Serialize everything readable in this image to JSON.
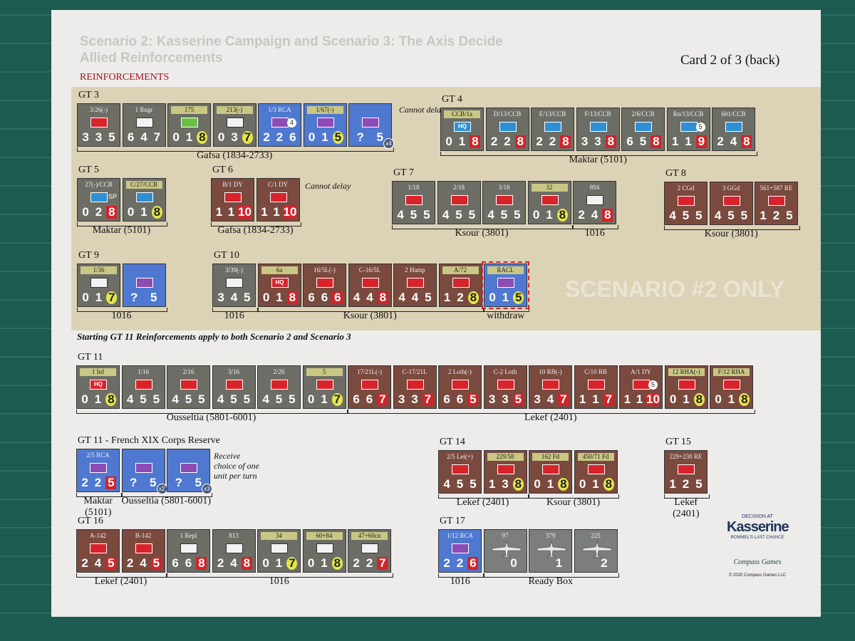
{
  "header": {
    "title_line1": "Scenario 2: Kasserine Campaign and Scenario 3: The Axis Decide",
    "title_line2": "Allied Reinforcements",
    "card": "Card 2 of 3 (back)",
    "section": "REINFORCEMENTS"
  },
  "scenario_only": "SCENARIO #2 ONLY",
  "starting_note": "Starting GT 11 Reinforcements apply to both Scenario 2 and Scenario 3",
  "groups": [
    {
      "label": "GT 3",
      "note": "Cannot delay",
      "locations": [
        "Gafsa (1834-2733)"
      ],
      "units": [
        {
          "name": "3/26(-)",
          "stats": [
            "3",
            "3",
            "5"
          ],
          "color": "gray",
          "icon": "red"
        },
        {
          "name": "1 Rngr",
          "stats": [
            "6",
            "4",
            "7"
          ],
          "color": "gray",
          "icon": "white"
        },
        {
          "name": "175",
          "stats": [
            "0",
            "1",
            "8"
          ],
          "color": "gray",
          "icon": "green",
          "band": true,
          "hl": "yellow"
        },
        {
          "name": "213(-)",
          "stats": [
            "0",
            "3",
            "7"
          ],
          "color": "gray",
          "icon": "white",
          "band": true,
          "hl": "yellow"
        },
        {
          "name": "1/3 RCA",
          "stats": [
            "2",
            "2",
            "6"
          ],
          "color": "blue",
          "icon": "purple",
          "badge": "4"
        },
        {
          "name": "1/67(-)",
          "stats": [
            "0",
            "1",
            "5"
          ],
          "color": "blue",
          "icon": "purple",
          "band": true,
          "hl": "yellow"
        },
        {
          "name": "",
          "stats": [
            "?",
            "5"
          ],
          "color": "blue",
          "icon": "purple",
          "mult": "x4"
        }
      ]
    },
    {
      "label": "GT 4",
      "locations": [
        "Maktar (5101)"
      ],
      "units": [
        {
          "name": "CCB/1a",
          "stats": [
            "0",
            "1",
            "8"
          ],
          "color": "gray",
          "icon": "blue",
          "band": true,
          "icon_text": "HQ",
          "hl": "red"
        },
        {
          "name": "D/13/CCB",
          "stats": [
            "2",
            "2",
            "8"
          ],
          "color": "gray",
          "icon": "blue",
          "hl": "red"
        },
        {
          "name": "E/13/CCB",
          "stats": [
            "2",
            "2",
            "8"
          ],
          "color": "gray",
          "icon": "blue",
          "hl": "red"
        },
        {
          "name": "F/13/CCB",
          "stats": [
            "3",
            "3",
            "8"
          ],
          "color": "gray",
          "icon": "blue",
          "hl": "red"
        },
        {
          "name": "2/6/CCB",
          "stats": [
            "6",
            "5",
            "8"
          ],
          "color": "gray",
          "icon": "blue",
          "hl": "red"
        },
        {
          "name": "Rn/13/CCB",
          "stats": [
            "1",
            "1",
            "9"
          ],
          "color": "gray",
          "icon": "blue",
          "hl": "red",
          "badge": "5"
        },
        {
          "name": "601/CCB",
          "stats": [
            "2",
            "4",
            "8"
          ],
          "color": "gray",
          "icon": "blue",
          "hl": "red"
        }
      ]
    },
    {
      "label": "GT 5",
      "locations": [
        "Maktar (5101)"
      ],
      "units": [
        {
          "name": "27(-)/CCB",
          "stats": [
            "0",
            "2",
            "8"
          ],
          "color": "gray",
          "icon": "blue",
          "hl": "red",
          "tag": "SP"
        },
        {
          "name": "C/27/CCB",
          "stats": [
            "0",
            "1",
            "8"
          ],
          "color": "gray",
          "icon": "blue",
          "band": true,
          "hl": "yellow"
        }
      ]
    },
    {
      "label": "GT 6",
      "note": "Cannot delay",
      "locations": [
        "Gafsa (1834-2733)"
      ],
      "units": [
        {
          "name": "B/1 DY",
          "stats": [
            "1",
            "1",
            "10"
          ],
          "color": "brown",
          "icon": "red",
          "hl": "red"
        },
        {
          "name": "C/1 DY",
          "stats": [
            "1",
            "1",
            "10"
          ],
          "color": "brown",
          "icon": "red",
          "hl": "red"
        }
      ]
    },
    {
      "label": "GT 7",
      "locations": [
        "Ksour (3801)",
        "1016"
      ],
      "units": [
        {
          "name": "1/18",
          "stats": [
            "4",
            "5",
            "5"
          ],
          "color": "gray",
          "icon": "red"
        },
        {
          "name": "2/18",
          "stats": [
            "4",
            "5",
            "5"
          ],
          "color": "gray",
          "icon": "red"
        },
        {
          "name": "3/18",
          "stats": [
            "4",
            "5",
            "5"
          ],
          "color": "gray",
          "icon": "red"
        },
        {
          "name": "32",
          "stats": [
            "0",
            "1",
            "8"
          ],
          "color": "gray",
          "icon": "red",
          "band": true,
          "hl": "yellow"
        },
        {
          "name": "894",
          "stats": [
            "2",
            "4",
            "8"
          ],
          "color": "gray",
          "icon": "white",
          "hl": "red"
        }
      ]
    },
    {
      "label": "GT 8",
      "locations": [
        "Ksour (3801)"
      ],
      "units": [
        {
          "name": "2 CGd",
          "stats": [
            "4",
            "5",
            "5"
          ],
          "color": "brown",
          "icon": "red"
        },
        {
          "name": "3 GGd",
          "stats": [
            "4",
            "5",
            "5"
          ],
          "color": "brown",
          "icon": "red"
        },
        {
          "name": "561+587 RE",
          "stats": [
            "1",
            "2",
            "5"
          ],
          "color": "brown",
          "icon": "red"
        }
      ]
    },
    {
      "label": "GT 9",
      "locations": [
        "1016"
      ],
      "units": [
        {
          "name": "1/36",
          "stats": [
            "0",
            "1",
            "7"
          ],
          "color": "gray",
          "icon": "white",
          "band": true,
          "hl": "yellow"
        },
        {
          "name": "",
          "stats": [
            "?",
            "5"
          ],
          "color": "blue",
          "icon": "purple"
        }
      ]
    },
    {
      "label": "GT 10",
      "locations": [
        "1016",
        "Ksour (3801)",
        "withdraw"
      ],
      "units": [
        {
          "name": "3/39(-)",
          "stats": [
            "3",
            "4",
            "5"
          ],
          "color": "gray",
          "icon": "white"
        },
        {
          "name": "6a",
          "stats": [
            "0",
            "1",
            "8"
          ],
          "color": "brown",
          "icon": "red",
          "band": true,
          "icon_text": "HQ",
          "hl": "red"
        },
        {
          "name": "16/5L(-)",
          "stats": [
            "6",
            "6",
            "6"
          ],
          "color": "brown",
          "icon": "red",
          "hl": "red"
        },
        {
          "name": "C-16/5L",
          "stats": [
            "4",
            "4",
            "8"
          ],
          "color": "brown",
          "icon": "red",
          "hl": "red"
        },
        {
          "name": "2 Hamp",
          "stats": [
            "4",
            "4",
            "5"
          ],
          "color": "brown",
          "icon": "red"
        },
        {
          "name": "A/72",
          "stats": [
            "1",
            "2",
            "8"
          ],
          "color": "brown",
          "icon": "red",
          "band": true,
          "hl": "yellow"
        },
        {
          "name": "RACL",
          "stats": [
            "0",
            "1",
            "5"
          ],
          "color": "blue",
          "icon": "purple",
          "band": true,
          "hl": "yellow",
          "dashed": true
        }
      ]
    },
    {
      "label": "GT 11",
      "locations": [
        "Ousseltia (5801-6001)",
        "Lekef (2401)"
      ],
      "units": [
        {
          "name": "1 Inf",
          "stats": [
            "0",
            "1",
            "8"
          ],
          "color": "gray",
          "icon": "red",
          "band": true,
          "icon_text": "HQ",
          "hl": "yellow"
        },
        {
          "name": "1/16",
          "stats": [
            "4",
            "5",
            "5"
          ],
          "color": "gray",
          "icon": "red"
        },
        {
          "name": "2/16",
          "stats": [
            "4",
            "5",
            "5"
          ],
          "color": "gray",
          "icon": "red"
        },
        {
          "name": "3/16",
          "stats": [
            "4",
            "5",
            "5"
          ],
          "color": "gray",
          "icon": "red"
        },
        {
          "name": "2/26",
          "stats": [
            "4",
            "5",
            "5"
          ],
          "color": "gray",
          "icon": "red"
        },
        {
          "name": "5",
          "stats": [
            "0",
            "1",
            "7"
          ],
          "color": "gray",
          "icon": "red",
          "band": true,
          "hl": "yellow"
        },
        {
          "name": "17/21L(-)",
          "stats": [
            "6",
            "6",
            "7"
          ],
          "color": "brown",
          "icon": "red",
          "hl": "red"
        },
        {
          "name": "C-17/21L",
          "stats": [
            "3",
            "3",
            "7"
          ],
          "color": "brown",
          "icon": "red",
          "hl": "red"
        },
        {
          "name": "2 Loth(-)",
          "stats": [
            "6",
            "6",
            "5"
          ],
          "color": "brown",
          "icon": "red",
          "hl": "red"
        },
        {
          "name": "C-2 Loth",
          "stats": [
            "3",
            "3",
            "5"
          ],
          "color": "brown",
          "icon": "red",
          "hl": "red"
        },
        {
          "name": "10 RB(-)",
          "stats": [
            "3",
            "4",
            "7"
          ],
          "color": "brown",
          "icon": "red",
          "hl": "red"
        },
        {
          "name": "C/10 RB",
          "stats": [
            "1",
            "1",
            "7"
          ],
          "color": "brown",
          "icon": "red",
          "hl": "red"
        },
        {
          "name": "A/1 DY",
          "stats": [
            "1",
            "1",
            "10"
          ],
          "color": "brown",
          "icon": "red",
          "hl": "red",
          "badge": "5"
        },
        {
          "name": "12 RHA(-)",
          "stats": [
            "0",
            "1",
            "8"
          ],
          "color": "brown",
          "icon": "red",
          "band": true,
          "hl": "yellow"
        },
        {
          "name": "F/12 RHA",
          "stats": [
            "0",
            "1",
            "8"
          ],
          "color": "brown",
          "icon": "red",
          "band": true,
          "hl": "yellow"
        }
      ]
    },
    {
      "label": "GT 11 - French XIX Corps Reserve",
      "note": "Receive choice of one unit per turn",
      "locations": [
        "Maktar (5101)",
        "Ousseltia (5801-6001)"
      ],
      "units": [
        {
          "name": "2/5 RCA",
          "stats": [
            "2",
            "2",
            "5"
          ],
          "color": "blue",
          "icon": "purple",
          "hl": "red"
        },
        {
          "name": "",
          "stats": [
            "?",
            "5"
          ],
          "color": "blue",
          "icon": "purple",
          "mult": "x2"
        },
        {
          "name": "",
          "stats": [
            "?",
            "5"
          ],
          "color": "blue",
          "icon": "purple",
          "mult": "x3"
        }
      ]
    },
    {
      "label": "GT 14",
      "locations": [
        "Lekef (2401)",
        "Ksour (3801)"
      ],
      "units": [
        {
          "name": "2/5 Lei(+)",
          "stats": [
            "4",
            "5",
            "5"
          ],
          "color": "brown",
          "icon": "red"
        },
        {
          "name": "229/58",
          "stats": [
            "1",
            "3",
            "8"
          ],
          "color": "brown",
          "icon": "red",
          "band": true,
          "hl": "yellow"
        },
        {
          "name": "162 Fd",
          "stats": [
            "0",
            "1",
            "8"
          ],
          "color": "brown",
          "icon": "red",
          "band": true,
          "hl": "yellow"
        },
        {
          "name": "450/71 Fd",
          "stats": [
            "0",
            "1",
            "8"
          ],
          "color": "brown",
          "icon": "red",
          "band": true,
          "hl": "yellow"
        }
      ]
    },
    {
      "label": "GT 15",
      "locations": [
        "Lekef (2401)"
      ],
      "units": [
        {
          "name": "229+230 RE",
          "stats": [
            "1",
            "2",
            "5"
          ],
          "color": "brown",
          "icon": "red"
        }
      ]
    },
    {
      "label": "GT 16",
      "locations": [
        "Lekef (2401)",
        "1016"
      ],
      "units": [
        {
          "name": "A-142",
          "stats": [
            "2",
            "4",
            "5"
          ],
          "color": "brown",
          "icon": "red",
          "hl": "red"
        },
        {
          "name": "B-142",
          "stats": [
            "2",
            "4",
            "5"
          ],
          "color": "brown",
          "icon": "red",
          "hl": "red"
        },
        {
          "name": "1 Repl",
          "stats": [
            "6",
            "6",
            "8"
          ],
          "color": "gray",
          "icon": "white",
          "hl": "red"
        },
        {
          "name": "813",
          "stats": [
            "2",
            "4",
            "8"
          ],
          "color": "gray",
          "icon": "white",
          "hl": "red"
        },
        {
          "name": "34",
          "stats": [
            "0",
            "1",
            "7"
          ],
          "color": "gray",
          "icon": "white",
          "band": true,
          "hl": "yellow"
        },
        {
          "name": "60+84",
          "stats": [
            "0",
            "1",
            "8"
          ],
          "color": "gray",
          "icon": "white",
          "band": true,
          "hl": "yellow"
        },
        {
          "name": "47+60cn",
          "stats": [
            "2",
            "2",
            "7"
          ],
          "color": "gray",
          "icon": "white",
          "band": true,
          "hl": "red"
        }
      ]
    },
    {
      "label": "GT 17",
      "locations": [
        "1016",
        "Ready Box"
      ],
      "units": [
        {
          "name": "1/12 RCA",
          "stats": [
            "2",
            "2",
            "6"
          ],
          "color": "blue",
          "icon": "purple",
          "hl": "red"
        },
        {
          "name": "97",
          "stats": [
            "0"
          ],
          "color": "air",
          "icon": "plane"
        },
        {
          "name": "379",
          "stats": [
            "1"
          ],
          "color": "air",
          "icon": "plane"
        },
        {
          "name": "225",
          "stats": [
            "2"
          ],
          "color": "air",
          "icon": "plane"
        }
      ]
    }
  ],
  "logo": {
    "top": "DECISION AT",
    "name": "Kasserine",
    "sub": "ROMMEL'S LAST CHANCE",
    "publisher": "Compass Games",
    "copyright": "© 2020 Compass Games LLC"
  }
}
